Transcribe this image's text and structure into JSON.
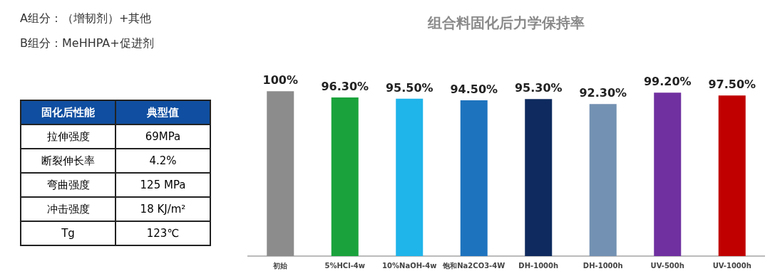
{
  "chart_data": [
    {
      "type": "other",
      "annotations": [
        "A组分：（增韧剂）+其他",
        "B组分：MeHHPA+促进剂"
      ]
    },
    {
      "type": "other",
      "categories": [
        "固化后性能",
        "典型值"
      ],
      "y_categories": [
        "拉伸强度",
        "断裂伸长率",
        "弯曲强度",
        "冲击强度",
        "Tg"
      ],
      "cell_labels": [
        [
          "69MPa"
        ],
        [
          "4.2%"
        ],
        [
          "125 MPa"
        ],
        [
          "18 KJ/m²"
        ],
        [
          "123℃"
        ]
      ]
    },
    {
      "type": "bar",
      "title": "组合料固化后力学保持率",
      "categories": [
        "初始",
        "5%HCl-4w",
        "10%NaOH-4w",
        "饱和Na2CO3-4W",
        "DH-1000h",
        "DH-1000h",
        "UV-500h",
        "UV-1000h"
      ],
      "values": [
        100,
        96.3,
        95.5,
        94.5,
        95.3,
        92.3,
        99.2,
        97.5
      ],
      "value_labels": [
        "100%",
        "96.30%",
        "95.50%",
        "94.50%",
        "95.30%",
        "92.30%",
        "99.20%",
        "97.50%"
      ],
      "colors": [
        "#8c8c8c",
        "#1aa33c",
        "#1fb4ea",
        "#1e73be",
        "#0e2a5e",
        "#7391b2",
        "#7030a0",
        "#c00000"
      ],
      "grid": false,
      "legend": false
    }
  ]
}
